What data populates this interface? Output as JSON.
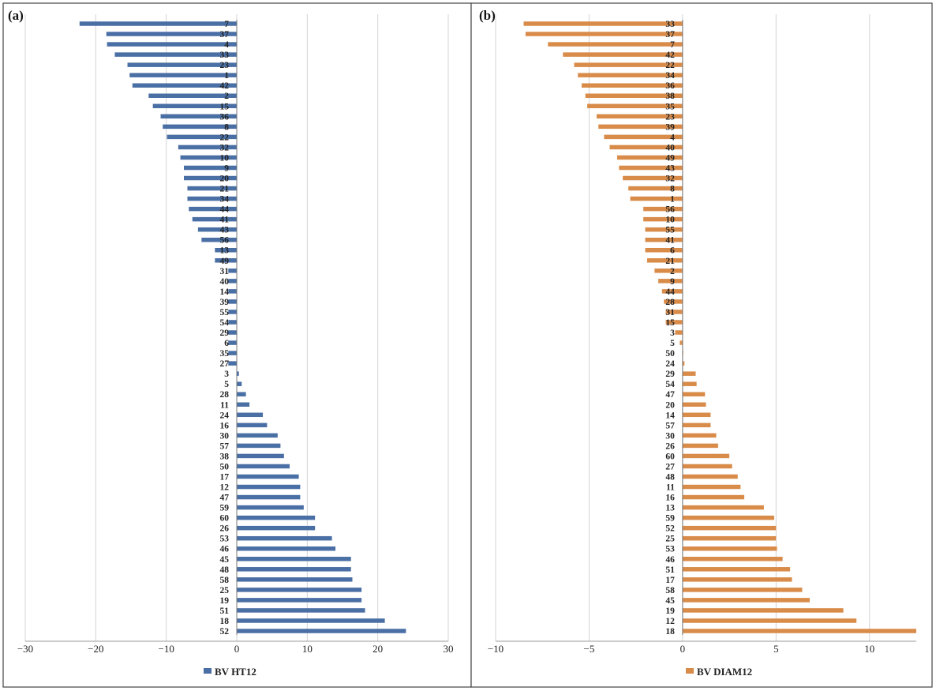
{
  "chart_data": [
    {
      "type": "bar",
      "orientation": "horizontal",
      "panel_label": "(a)",
      "legend": "BV HT12",
      "legend_position": "bottom",
      "color": "#4a6fa5",
      "grid": true,
      "xlim": [
        -30,
        30
      ],
      "xticks": [
        -30,
        -20,
        -10,
        0,
        10,
        20,
        30
      ],
      "xtick_labels": [
        "−30",
        "−20",
        "−10",
        "0",
        "10",
        "20",
        "30"
      ],
      "categories": [
        "7",
        "37",
        "4",
        "33",
        "23",
        "1",
        "42",
        "2",
        "15",
        "36",
        "8",
        "22",
        "32",
        "10",
        "9",
        "20",
        "21",
        "34",
        "44",
        "41",
        "43",
        "56",
        "13",
        "49",
        "31",
        "40",
        "14",
        "39",
        "55",
        "54",
        "29",
        "6",
        "35",
        "27",
        "3",
        "5",
        "28",
        "11",
        "24",
        "16",
        "30",
        "57",
        "38",
        "50",
        "17",
        "12",
        "47",
        "59",
        "60",
        "26",
        "53",
        "46",
        "45",
        "48",
        "58",
        "25",
        "19",
        "51",
        "18",
        "52"
      ],
      "values": [
        -22.3,
        -18.5,
        -18.4,
        -17.3,
        -15.5,
        -15.2,
        -14.8,
        -12.5,
        -11.9,
        -10.8,
        -10.5,
        -9.9,
        -8.3,
        -8.0,
        -7.5,
        -7.5,
        -7.0,
        -7.0,
        -6.8,
        -6.3,
        -5.5,
        -5.0,
        -3.1,
        -3.1,
        -1.2,
        -1.2,
        -1.2,
        -1.2,
        -1.2,
        -1.2,
        -1.2,
        -1.2,
        -1.2,
        -1.2,
        0.3,
        0.7,
        1.3,
        1.8,
        3.7,
        4.3,
        5.8,
        6.2,
        6.7,
        7.5,
        8.8,
        9.0,
        9.0,
        9.5,
        11.1,
        11.1,
        13.5,
        14.0,
        16.2,
        16.2,
        16.4,
        17.7,
        17.7,
        18.2,
        21.0,
        24.0
      ]
    },
    {
      "type": "bar",
      "orientation": "horizontal",
      "panel_label": "(b)",
      "legend": "BV DIAM12",
      "legend_position": "bottom",
      "color": "#d98c4a",
      "grid": true,
      "xlim": [
        -10,
        12.5
      ],
      "xticks": [
        -10,
        -5,
        0,
        5,
        10
      ],
      "xtick_labels": [
        "−10",
        "−5",
        "0",
        "5",
        "10"
      ],
      "categories": [
        "33",
        "37",
        "7",
        "42",
        "22",
        "34",
        "36",
        "38",
        "35",
        "23",
        "39",
        "4",
        "40",
        "49",
        "43",
        "32",
        "8",
        "1",
        "56",
        "10",
        "55",
        "41",
        "6",
        "21",
        "2",
        "9",
        "44",
        "28",
        "31",
        "15",
        "3",
        "5",
        "50",
        "24",
        "29",
        "54",
        "47",
        "20",
        "14",
        "57",
        "30",
        "26",
        "60",
        "27",
        "48",
        "11",
        "16",
        "13",
        "59",
        "52",
        "25",
        "53",
        "46",
        "51",
        "17",
        "58",
        "45",
        "19",
        "12",
        "18"
      ],
      "values": [
        -8.5,
        -8.4,
        -7.2,
        -6.4,
        -5.8,
        -5.6,
        -5.4,
        -5.2,
        -5.1,
        -4.6,
        -4.5,
        -4.2,
        -3.9,
        -3.5,
        -3.4,
        -3.2,
        -2.9,
        -2.8,
        -2.1,
        -2.1,
        -2.0,
        -2.0,
        -2.0,
        -1.9,
        -1.5,
        -1.3,
        -1.1,
        -1.0,
        -0.9,
        -0.9,
        -0.4,
        -0.15,
        0.0,
        0.1,
        0.7,
        0.75,
        1.2,
        1.25,
        1.5,
        1.5,
        1.8,
        1.9,
        2.5,
        2.65,
        2.95,
        3.1,
        3.3,
        4.35,
        4.9,
        5.0,
        5.0,
        5.05,
        5.35,
        5.75,
        5.85,
        6.4,
        6.8,
        8.6,
        9.3,
        12.5
      ]
    }
  ]
}
